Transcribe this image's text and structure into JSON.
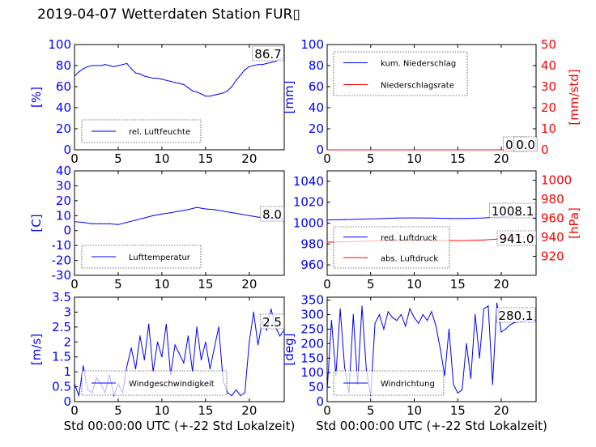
{
  "title": "2019-04-07 Wetterdaten Station FUR▯",
  "colors": {
    "blue": "#0000ff",
    "red": "#ff0000",
    "black": "#000000"
  },
  "chart_data": [
    {
      "type": "line",
      "ylabel": "[%]",
      "xlim": [
        0,
        24
      ],
      "ylim": [
        0,
        100
      ],
      "xticks": [
        0,
        5,
        10,
        15,
        20
      ],
      "yticks": [
        0,
        20,
        40,
        60,
        80,
        100
      ],
      "legend": "bottom-left",
      "annotation": "86.7",
      "series": [
        {
          "name": "rel. Luftfeuchte",
          "color": "#0000ff",
          "x": [
            0,
            0.5,
            1,
            1.5,
            2,
            2.5,
            3,
            3.5,
            4,
            4.5,
            5,
            5.5,
            6,
            6.5,
            7,
            7.5,
            8,
            8.5,
            9,
            9.5,
            10,
            10.5,
            11,
            11.5,
            12,
            12.5,
            13,
            13.5,
            14,
            14.5,
            15,
            15.5,
            16,
            16.5,
            17,
            17.5,
            18,
            18.5,
            19,
            19.5,
            20,
            20.5,
            21,
            21.5,
            22,
            22.5,
            23,
            23.5,
            24
          ],
          "y": [
            70,
            74,
            77,
            79,
            80,
            80,
            80,
            81,
            80,
            79,
            80,
            81,
            82,
            77,
            73,
            72,
            70,
            69,
            68,
            68,
            67,
            66,
            65,
            64,
            63,
            62,
            59,
            56,
            55,
            53,
            51,
            51,
            52,
            53,
            54,
            56,
            60,
            66,
            71,
            76,
            79,
            80,
            81,
            81,
            82,
            83,
            84,
            86,
            87
          ]
        }
      ]
    },
    {
      "type": "line",
      "ylabel": "[mm]",
      "ylabel_right": "[mm/std]",
      "xlim": [
        0,
        24
      ],
      "ylim": [
        0,
        100
      ],
      "ylim_right": [
        0,
        50
      ],
      "xticks": [
        0,
        5,
        10,
        15,
        20
      ],
      "yticks": [
        0,
        20,
        40,
        60,
        80,
        100
      ],
      "yticks_right": [
        0,
        10,
        20,
        30,
        40,
        50
      ],
      "legend": "top-left",
      "annotations": [
        "0.0",
        "0.0"
      ],
      "series": [
        {
          "name": "kum. Niederschlag",
          "color": "#0000ff",
          "axis": "left",
          "x": [
            0,
            24
          ],
          "y": [
            0,
            0
          ]
        },
        {
          "name": "Niederschlagsrate",
          "color": "#ff0000",
          "axis": "right",
          "x": [
            0,
            24
          ],
          "y": [
            0,
            0
          ]
        }
      ]
    },
    {
      "type": "line",
      "ylabel": "[C]",
      "xlim": [
        0,
        24
      ],
      "ylim": [
        -30,
        40
      ],
      "xticks": [
        0,
        5,
        10,
        15,
        20
      ],
      "yticks": [
        -30,
        -20,
        -10,
        0,
        10,
        20,
        30,
        40
      ],
      "legend": "bottom-left",
      "annotation": "8.0",
      "series": [
        {
          "name": "Lufttemperatur",
          "color": "#0000ff",
          "x": [
            0,
            1,
            2,
            3,
            4,
            5,
            6,
            7,
            8,
            9,
            10,
            11,
            12,
            13,
            14,
            14.5,
            15,
            16,
            17,
            18,
            19,
            20,
            21,
            22,
            23,
            24
          ],
          "y": [
            6,
            5.5,
            4.5,
            4.5,
            4.5,
            4,
            5.5,
            7,
            8.5,
            10,
            11,
            12,
            13,
            14,
            15.5,
            15,
            14.5,
            14,
            13,
            12,
            11,
            10,
            9,
            8.5,
            8.2,
            8
          ]
        }
      ]
    },
    {
      "type": "line",
      "ylabel_right": "[hPa]",
      "xlim": [
        0,
        24
      ],
      "ylim": [
        950,
        1050
      ],
      "ylim_right": [
        900,
        1010
      ],
      "xticks": [
        0,
        5,
        10,
        15,
        20
      ],
      "yticks": [
        960,
        980,
        1000,
        1020,
        1040
      ],
      "yticks_right": [
        920,
        940,
        960,
        980,
        1000
      ],
      "legend": "bottom-left",
      "annotations": [
        "1008.1",
        "941.0"
      ],
      "series": [
        {
          "name": "red. Luftdruck",
          "color": "#0000ff",
          "axis": "left",
          "x": [
            0,
            2,
            4,
            6,
            8,
            10,
            12,
            14,
            16,
            18,
            20,
            22,
            24
          ],
          "y": [
            1003,
            1003.3,
            1003.8,
            1004.3,
            1004.8,
            1005,
            1004.8,
            1004.5,
            1004.5,
            1005,
            1006,
            1007.2,
            1008.1
          ]
        },
        {
          "name": "abs. Luftdruck",
          "color": "#ff0000",
          "axis": "right",
          "x": [
            0,
            2,
            4,
            6,
            8,
            10,
            12,
            14,
            16,
            18,
            20,
            22,
            24
          ],
          "y": [
            935,
            935.3,
            935.8,
            936.3,
            936.8,
            937,
            936.8,
            936.6,
            936.7,
            937.2,
            938.5,
            940,
            941
          ]
        }
      ]
    },
    {
      "type": "line",
      "ylabel": "[m/s]",
      "xlabel": "Std 00:00:00 UTC (+-22 Std Lokalzeit)",
      "xlim": [
        0,
        24
      ],
      "ylim": [
        0,
        3.5
      ],
      "xticks": [
        0,
        5,
        10,
        15,
        20
      ],
      "yticks": [
        0,
        0.5,
        1,
        1.5,
        2,
        2.5,
        3,
        3.5
      ],
      "legend": "bottom-left",
      "annotation": "2.5",
      "series": [
        {
          "name": "Windgeschwindigkeit",
          "color": "#0000ff",
          "x": [
            0,
            0.5,
            1,
            1.5,
            2,
            2.5,
            3,
            3.5,
            4,
            4.5,
            5,
            5.5,
            6,
            6.5,
            7,
            7.5,
            8,
            8.5,
            9,
            9.5,
            10,
            10.5,
            11,
            11.5,
            12,
            12.5,
            13,
            13.5,
            14,
            14.5,
            15,
            15.5,
            16,
            16.5,
            17,
            17.5,
            18,
            18.5,
            19,
            19.5,
            20,
            20.5,
            21,
            21.5,
            22,
            22.5,
            23,
            23.5,
            24
          ],
          "y": [
            0.6,
            0.2,
            1.2,
            0.4,
            0.3,
            0.8,
            0.6,
            0.3,
            0.9,
            0.2,
            0.6,
            0.3,
            1.2,
            1.8,
            1.1,
            2.2,
            1.4,
            2.6,
            1.0,
            2.0,
            1.5,
            2.6,
            0.9,
            1.9,
            1.6,
            1.3,
            2.2,
            1.0,
            2.5,
            1.4,
            2.0,
            1.1,
            1.8,
            2.5,
            0.7,
            0.3,
            0.2,
            0.4,
            0.2,
            0.3,
            2.0,
            3.0,
            1.9,
            2.7,
            2.4,
            3.1,
            2.5,
            2.2,
            2.4
          ]
        }
      ]
    },
    {
      "type": "line",
      "ylabel": "[deg]",
      "xlabel": "Std 00:00:00 UTC (+-22 Std Lokalzeit)",
      "xlim": [
        0,
        24
      ],
      "ylim": [
        0,
        360
      ],
      "xticks": [
        0,
        5,
        10,
        15,
        20
      ],
      "yticks": [
        0,
        50,
        100,
        150,
        200,
        250,
        300,
        350
      ],
      "legend": "bottom-left",
      "annotation": "280.1",
      "series": [
        {
          "name": "Windrichtung",
          "color": "#0000ff",
          "x": [
            0,
            0.5,
            1,
            1.5,
            2,
            2.5,
            3,
            3.5,
            4,
            4.5,
            5,
            5.5,
            6,
            6.5,
            7,
            7.5,
            8,
            8.5,
            9,
            9.5,
            10,
            10.5,
            11,
            11.5,
            12,
            12.5,
            13,
            13.5,
            14,
            14.5,
            15,
            15.5,
            16,
            16.5,
            17,
            17.5,
            18,
            18.5,
            19,
            19.5,
            20,
            20.5,
            21,
            21.5,
            22,
            22.5,
            23,
            23.5,
            24
          ],
          "y": [
            40,
            280,
            90,
            320,
            120,
            30,
            300,
            60,
            330,
            110,
            20,
            270,
            300,
            250,
            310,
            290,
            280,
            300,
            260,
            320,
            290,
            270,
            300,
            280,
            310,
            260,
            180,
            90,
            250,
            60,
            30,
            40,
            200,
            80,
            300,
            150,
            320,
            330,
            60,
            340,
            240,
            250,
            265,
            272,
            276,
            278,
            280,
            282,
            280
          ]
        }
      ]
    }
  ]
}
